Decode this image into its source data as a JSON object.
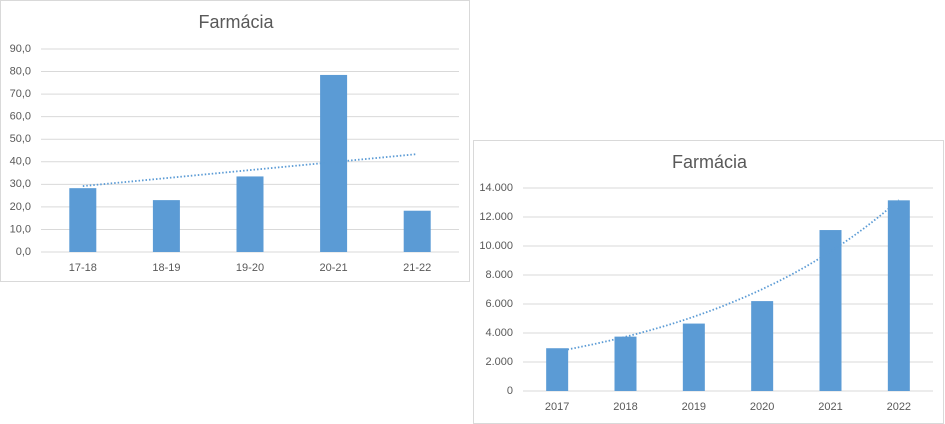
{
  "chart_data": [
    {
      "type": "bar",
      "title": "Farmácia",
      "categories": [
        "17-18",
        "18-19",
        "19-20",
        "20-21",
        "21-22"
      ],
      "values": [
        28.3,
        23.0,
        33.5,
        78.5,
        18.3
      ],
      "color": "#5b9bd5",
      "trendline": "linear",
      "ylim": [
        0,
        90
      ],
      "yticks": [
        {
          "value": 0,
          "label": "0,0"
        },
        {
          "value": 10,
          "label": "10,0"
        },
        {
          "value": 20,
          "label": "20,0"
        },
        {
          "value": 30,
          "label": "30,0"
        },
        {
          "value": 40,
          "label": "40,0"
        },
        {
          "value": 50,
          "label": "50,0"
        },
        {
          "value": 60,
          "label": "60,0"
        },
        {
          "value": 70,
          "label": "70,0"
        },
        {
          "value": 80,
          "label": "80,0"
        },
        {
          "value": 90,
          "label": "90,0"
        }
      ],
      "grid": true
    },
    {
      "type": "bar",
      "title": "Farmácia",
      "categories": [
        "2017",
        "2018",
        "2019",
        "2020",
        "2021",
        "2022"
      ],
      "values": [
        2950,
        3750,
        4650,
        6200,
        11100,
        13150
      ],
      "color": "#5b9bd5",
      "trendline": "exponential",
      "ylim": [
        0,
        14000
      ],
      "yticks": [
        0,
        {
          "value": 2000,
          "label": "2.000"
        },
        {
          "value": 4000,
          "label": "4.000"
        },
        {
          "value": 6000,
          "label": "6.000"
        },
        {
          "value": 8000,
          "label": "8.000"
        },
        {
          "value": 10000,
          "label": "10.000"
        },
        {
          "value": 12000,
          "label": "12.000"
        },
        {
          "value": 14000,
          "label": "14.000"
        }
      ],
      "grid": true
    }
  ]
}
